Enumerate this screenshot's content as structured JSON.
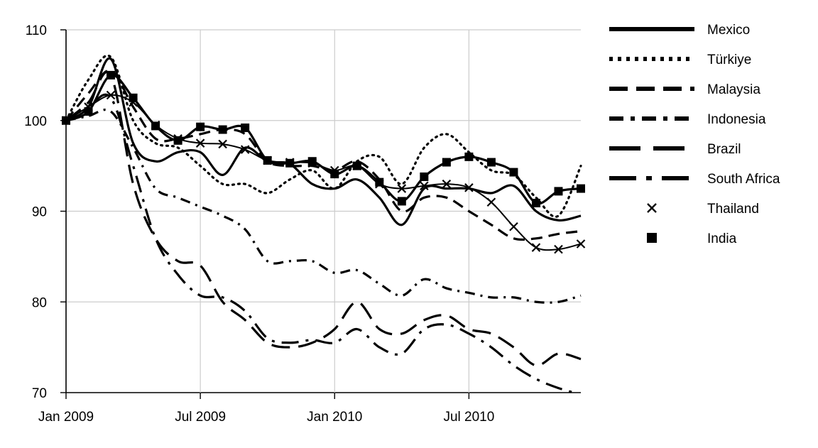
{
  "chart_data": {
    "type": "line",
    "title": "",
    "xlabel": "",
    "ylabel": "",
    "x": [
      "2009-01",
      "2009-02",
      "2009-03",
      "2009-04",
      "2009-05",
      "2009-06",
      "2009-07",
      "2009-08",
      "2009-09",
      "2009-10",
      "2009-11",
      "2009-12",
      "2010-01",
      "2010-02",
      "2010-03",
      "2010-04",
      "2010-05",
      "2010-06",
      "2010-07",
      "2010-08",
      "2010-09",
      "2010-10",
      "2010-11",
      "2010-12"
    ],
    "x_ticks": [
      {
        "value": "2009-01",
        "label": "Jan 2009"
      },
      {
        "value": "2009-07",
        "label": "Jul 2009"
      },
      {
        "value": "2010-01",
        "label": "Jan 2010"
      },
      {
        "value": "2010-07",
        "label": "Jul 2010"
      }
    ],
    "ylim": [
      70,
      110
    ],
    "y_ticks": [
      70,
      80,
      90,
      100,
      110
    ],
    "grid": true,
    "legend_position": "right",
    "series": [
      {
        "name": "Mexico",
        "style": "solid",
        "marker": "none",
        "values": [
          100,
          101.5,
          106.8,
          97.5,
          95.5,
          96.5,
          96.5,
          94.0,
          97.0,
          95.5,
          95.2,
          93.0,
          92.5,
          93.5,
          91.5,
          88.5,
          92.5,
          92.5,
          92.5,
          92.0,
          92.8,
          90.0,
          89.0,
          89.5
        ]
      },
      {
        "name": "Türkiye",
        "style": "dotted",
        "marker": "none",
        "values": [
          100,
          104.5,
          107.0,
          100.0,
          97.5,
          97.0,
          95.0,
          93.0,
          93.0,
          92.0,
          93.5,
          94.5,
          92.5,
          95.5,
          96.0,
          93.0,
          97.0,
          98.5,
          96.5,
          94.5,
          94.0,
          91.5,
          89.5,
          95.0
        ]
      },
      {
        "name": "Malaysia",
        "style": "dashed",
        "marker": "none",
        "values": [
          100,
          103.0,
          105.5,
          101.5,
          98.0,
          98.0,
          98.5,
          99.0,
          98.5,
          95.5,
          95.0,
          95.0,
          94.5,
          95.5,
          93.5,
          90.0,
          91.5,
          91.5,
          90.0,
          88.5,
          87.0,
          87.0,
          87.5,
          87.8
        ]
      },
      {
        "name": "Indonesia",
        "style": "dashdot",
        "marker": "none",
        "values": [
          100,
          100.5,
          101.0,
          97.0,
          92.5,
          91.5,
          90.5,
          89.5,
          88.0,
          84.5,
          84.5,
          84.5,
          83.2,
          83.5,
          82.0,
          80.7,
          82.5,
          81.5,
          81.0,
          80.5,
          80.5,
          80.0,
          80.0,
          80.7
        ]
      },
      {
        "name": "Brazil",
        "style": "longdash",
        "marker": "none",
        "values": [
          100,
          102.0,
          105.0,
          93.0,
          87.0,
          84.5,
          84.0,
          80.0,
          78.0,
          75.5,
          75.0,
          75.5,
          77.0,
          80.0,
          77.0,
          76.5,
          78.0,
          78.5,
          77.0,
          76.5,
          75.0,
          73.0,
          74.3,
          73.7
        ]
      },
      {
        "name": "South Africa",
        "style": "longdashdot",
        "marker": "none",
        "values": [
          100,
          101.5,
          102.5,
          95.0,
          87.0,
          83.0,
          80.7,
          80.5,
          79.0,
          76.0,
          75.5,
          75.8,
          75.5,
          77.0,
          75.0,
          74.3,
          77.0,
          77.5,
          76.5,
          75.0,
          73.0,
          71.5,
          70.5,
          69.8
        ]
      },
      {
        "name": "Thailand",
        "style": "thin",
        "marker": "x",
        "values": [
          100,
          101.5,
          102.8,
          102.0,
          99.5,
          98.0,
          97.5,
          97.4,
          96.8,
          95.6,
          95.4,
          95.3,
          94.5,
          95.0,
          93.0,
          92.5,
          92.8,
          93.0,
          92.6,
          91.0,
          88.3,
          86.0,
          85.8,
          86.4
        ]
      },
      {
        "name": "India",
        "style": "solid",
        "marker": "square",
        "values": [
          100,
          101.0,
          105.0,
          102.5,
          99.4,
          97.8,
          99.3,
          99.0,
          99.2,
          95.6,
          95.3,
          95.5,
          94.1,
          95.0,
          93.2,
          91.1,
          93.8,
          95.4,
          96.0,
          95.4,
          94.3,
          90.9,
          92.2,
          92.5
        ]
      }
    ]
  }
}
